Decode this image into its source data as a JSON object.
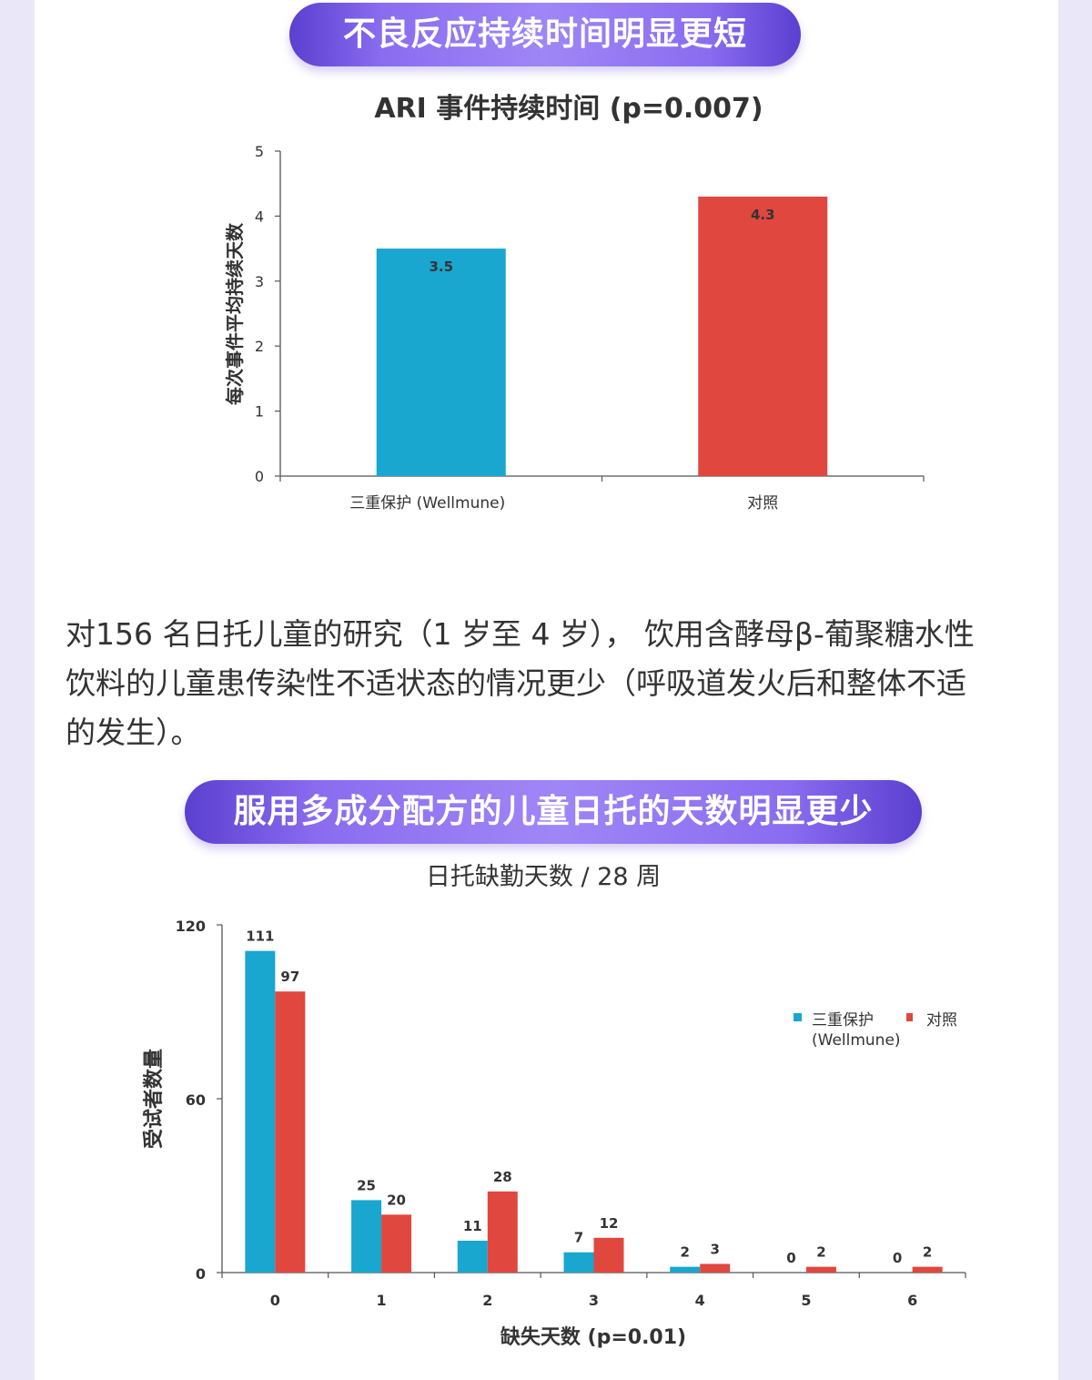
{
  "banner1": "不良反应持续时间明显更短",
  "banner2": "服用多成分配方的儿童日托的天数明显更少",
  "paragraph": "对156 名日托儿童的研究（1 岁至 4 岁）， 饮用含酵母β-葡聚糖水性饮料的儿童患传染性不适状态的情况更少（呼吸道发火后和整体不适的发生）。",
  "colors": {
    "blue": "#19a6cf",
    "red": "#e0473f",
    "banner": "#7d62e6"
  },
  "chart_data": [
    {
      "type": "bar",
      "title": "ARI 事件持续时间 (p=0.007)",
      "xlabel": "",
      "ylabel": "每次事件平均持续天数",
      "categories": [
        "三重保护 (Wellmune)",
        "对照"
      ],
      "values": [
        3.5,
        4.3
      ],
      "bar_labels": [
        "3.5",
        "4.3"
      ],
      "yticks": [
        "0",
        "1",
        "2",
        "3",
        "4",
        "5"
      ],
      "ylim": [
        0,
        5
      ],
      "colors": [
        "#19a6cf",
        "#e0473f"
      ]
    },
    {
      "type": "bar",
      "title": "日托缺勤天数 / 28 周",
      "xlabel": "缺失天数 (p=0.01)",
      "ylabel": "受试者数量",
      "categories": [
        "0",
        "1",
        "2",
        "3",
        "4",
        "5",
        "6"
      ],
      "series": [
        {
          "name": "三重保护 (Wellmune)",
          "values": [
            111,
            25,
            11,
            7,
            2,
            0,
            0
          ],
          "color": "#19a6cf"
        },
        {
          "name": "对照",
          "values": [
            97,
            20,
            28,
            12,
            3,
            2,
            2
          ],
          "color": "#e0473f"
        }
      ],
      "yticks": [
        "0",
        "60",
        "120"
      ],
      "ylim": [
        0,
        120
      ],
      "legend": "top-right",
      "legend_items": [
        "三重保护",
        "(Wellmune)",
        "对照"
      ]
    }
  ]
}
